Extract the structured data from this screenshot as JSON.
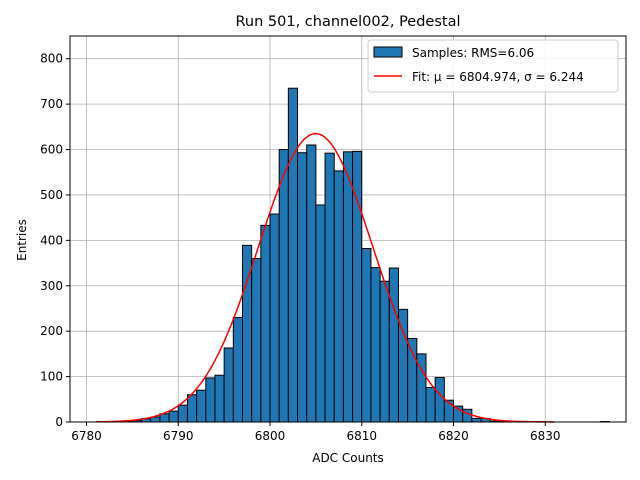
{
  "chart_data": {
    "type": "bar",
    "title": "Run 501, channel002, Pedestal",
    "xlabel": "ADC Counts",
    "ylabel": "Entries",
    "xlim": [
      6778.2,
      6838.8
    ],
    "ylim": [
      0,
      850
    ],
    "x_ticks": [
      6780,
      6790,
      6800,
      6810,
      6820,
      6830
    ],
    "y_ticks": [
      0,
      100,
      200,
      300,
      400,
      500,
      600,
      700,
      800
    ],
    "grid": true,
    "legend_position": "top-right",
    "bin_width": 1,
    "bin_start": 6784,
    "bin_values": [
      1,
      3,
      7,
      11,
      18,
      24,
      37,
      60,
      70,
      97,
      103,
      163,
      230,
      389,
      360,
      433,
      458,
      600,
      735,
      593,
      610,
      478,
      592,
      553,
      595,
      596,
      382,
      340,
      310,
      339,
      248,
      184,
      150,
      76,
      98,
      48,
      35,
      28,
      8,
      8,
      2,
      2,
      1,
      0,
      1,
      1,
      0,
      0,
      0,
      0,
      0,
      0,
      1
    ],
    "series": [
      {
        "name": "Samples: RMS=6.06",
        "kind": "histogram",
        "color": "#1f77b4",
        "edgecolor": "#000000"
      },
      {
        "name": "Fit: μ = 6804.974, σ = 6.244",
        "kind": "gaussian",
        "color": "#ff0000",
        "mu": 6804.974,
        "sigma": 6.244,
        "amplitude": 635,
        "x_range": [
          6781,
          6831
        ]
      }
    ]
  }
}
